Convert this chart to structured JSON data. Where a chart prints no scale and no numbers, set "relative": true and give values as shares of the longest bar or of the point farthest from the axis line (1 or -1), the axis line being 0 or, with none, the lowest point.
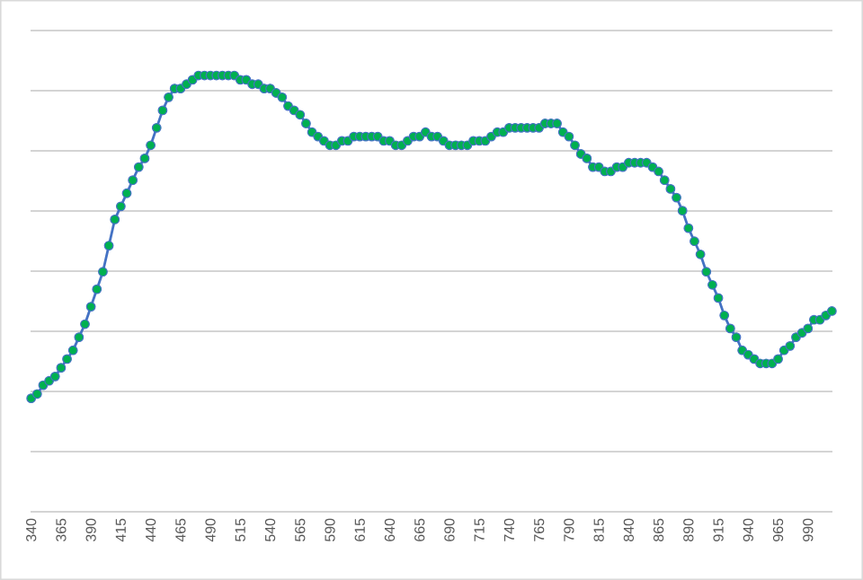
{
  "chart_data": {
    "type": "line",
    "relative": true,
    "grid": "y",
    "marker": "circle",
    "color": "#4472c4",
    "categories": [
      "340",
      null,
      null,
      null,
      null,
      "365",
      null,
      null,
      null,
      null,
      "390",
      null,
      null,
      null,
      null,
      "415",
      null,
      null,
      null,
      null,
      "440",
      null,
      null,
      null,
      null,
      "465",
      null,
      null,
      null,
      null,
      "490",
      null,
      null,
      null,
      null,
      "515",
      null,
      null,
      null,
      null,
      "540",
      null,
      null,
      null,
      null,
      "565",
      null,
      null,
      null,
      null,
      "590",
      null,
      null,
      null,
      null,
      "615",
      null,
      null,
      null,
      null,
      "640",
      null,
      null,
      null,
      null,
      "665",
      null,
      null,
      null,
      null,
      "690",
      null,
      null,
      null,
      null,
      "715",
      null,
      null,
      null,
      null,
      "740",
      null,
      null,
      null,
      null,
      "765",
      null,
      null,
      null,
      null,
      "790",
      null,
      null,
      null,
      null,
      "815",
      null,
      null,
      null,
      null,
      "840",
      null,
      null,
      null,
      null,
      "865",
      null,
      null,
      null,
      null,
      "890",
      null,
      null,
      null,
      null,
      "915",
      null,
      null,
      null,
      null,
      "940",
      null,
      null,
      null,
      null,
      "965",
      null,
      null,
      null,
      null,
      "990",
      null,
      null,
      null,
      null
    ],
    "values": [
      0.26,
      0.27,
      0.29,
      0.3,
      0.31,
      0.33,
      0.35,
      0.37,
      0.4,
      0.43,
      0.47,
      0.51,
      0.55,
      0.61,
      0.67,
      0.7,
      0.73,
      0.76,
      0.79,
      0.81,
      0.84,
      0.88,
      0.92,
      0.95,
      0.97,
      0.97,
      0.98,
      0.99,
      1.0,
      1.0,
      1.0,
      1.0,
      1.0,
      1.0,
      1.0,
      0.99,
      0.99,
      0.98,
      0.98,
      0.97,
      0.97,
      0.96,
      0.95,
      0.93,
      0.92,
      0.91,
      0.89,
      0.87,
      0.86,
      0.85,
      0.84,
      0.84,
      0.85,
      0.85,
      0.86,
      0.86,
      0.86,
      0.86,
      0.86,
      0.85,
      0.85,
      0.84,
      0.84,
      0.85,
      0.86,
      0.86,
      0.87,
      0.86,
      0.86,
      0.85,
      0.84,
      0.84,
      0.84,
      0.84,
      0.85,
      0.85,
      0.85,
      0.86,
      0.87,
      0.87,
      0.88,
      0.88,
      0.88,
      0.88,
      0.88,
      0.88,
      0.89,
      0.89,
      0.89,
      0.87,
      0.86,
      0.84,
      0.82,
      0.81,
      0.79,
      0.79,
      0.78,
      0.78,
      0.79,
      0.79,
      0.8,
      0.8,
      0.8,
      0.8,
      0.79,
      0.78,
      0.76,
      0.74,
      0.72,
      0.69,
      0.65,
      0.62,
      0.59,
      0.55,
      0.52,
      0.49,
      0.45,
      0.42,
      0.4,
      0.37,
      0.36,
      0.35,
      0.34,
      0.34,
      0.34,
      0.35,
      0.37,
      0.38,
      0.4,
      0.41,
      0.42,
      0.44,
      0.44,
      0.45,
      0.46
    ]
  }
}
